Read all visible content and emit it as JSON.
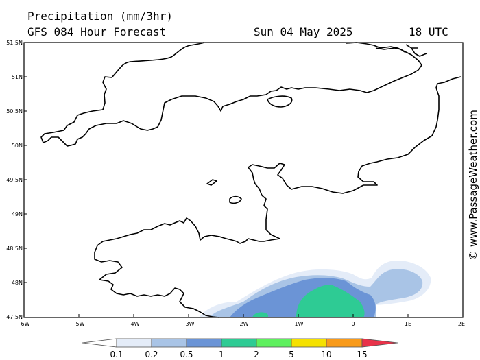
{
  "header": {
    "title": "Precipitation (mm/3hr)",
    "model": "GFS 084 Hour Forecast",
    "date": "Sun 04 May 2025",
    "time": "18 UTC"
  },
  "credit": "© www.PassageWeather.com",
  "latitude_labels": [
    "51.5N",
    "51N",
    "50.5N",
    "50N",
    "49.5N",
    "49N",
    "48.5N",
    "48N",
    "47.5N"
  ],
  "longitude_labels": [
    "6W",
    "5W",
    "4W",
    "3W",
    "2W",
    "1W",
    "0",
    "1E",
    "2E"
  ],
  "legend": {
    "units": "mm/3hr",
    "levels": [
      "0.1",
      "0.2",
      "0.5",
      "1",
      "2",
      "5",
      "10",
      "15"
    ],
    "colors": [
      "#ffffff",
      "#e4ecf8",
      "#a9c4e6",
      "#6b94d6",
      "#2ecb94",
      "#5ef05e",
      "#f5e100",
      "#f89a1a",
      "#e8334a"
    ]
  },
  "precip_colors": {
    "light": "#e4ecf8",
    "moderate": "#a9c4e6",
    "heavy": "#6b94d6",
    "very_heavy": "#2ecb94"
  }
}
